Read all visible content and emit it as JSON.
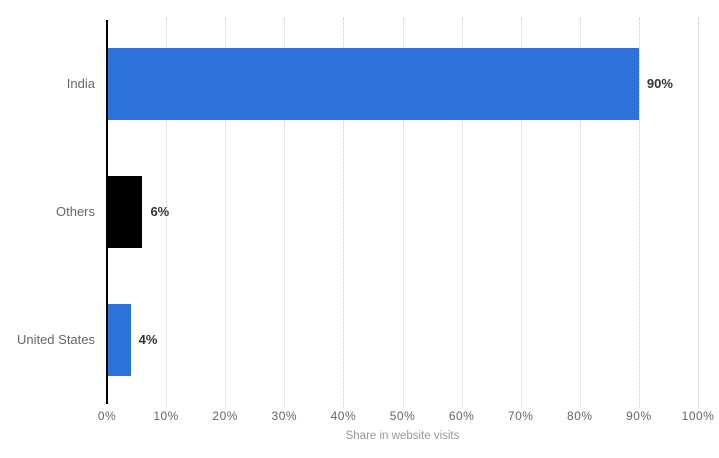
{
  "chart_data": {
    "type": "bar",
    "orientation": "horizontal",
    "title": "",
    "categories": [
      "India",
      "Others",
      "United States"
    ],
    "values": [
      90,
      6,
      4
    ],
    "value_labels": [
      "90%",
      "6%",
      "4%"
    ],
    "bar_colors": [
      "#2D72D9",
      "#000000",
      "#2D72D9"
    ],
    "xlabel": "Share in website visits",
    "xlim": [
      0,
      100
    ],
    "x_ticks": [
      0,
      10,
      20,
      30,
      40,
      50,
      60,
      70,
      80,
      90,
      100
    ],
    "x_tick_labels": [
      "0%",
      "10%",
      "20%",
      "30%",
      "40%",
      "50%",
      "60%",
      "70%",
      "80%",
      "90%",
      "100%"
    ],
    "grid": "vertical-dotted",
    "legend": "none"
  },
  "colors": {
    "bar_blue": "#2D72D9",
    "bar_black": "#000000",
    "axis_line": "#000000",
    "gridline": "#cccccc",
    "category_label": "#666666",
    "value_label": "#333333",
    "tick_label": "#666666",
    "axis_title": "#999999",
    "background": "#ffffff"
  }
}
